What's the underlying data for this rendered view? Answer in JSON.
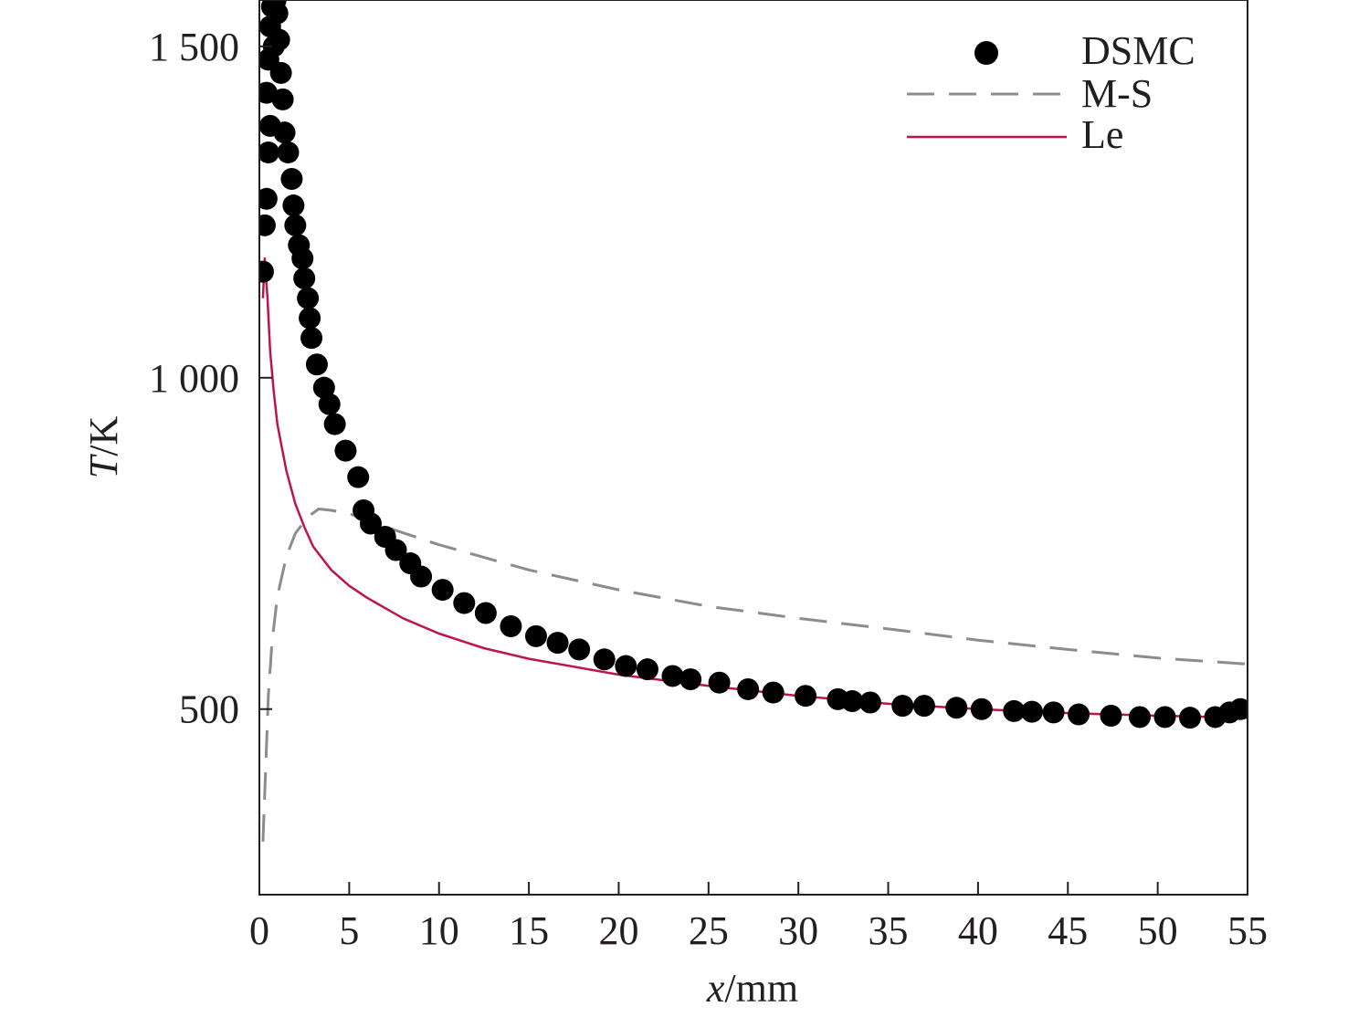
{
  "chart_data": {
    "type": "line",
    "xlabel": {
      "symbol": "x",
      "unit": "/mm"
    },
    "ylabel": {
      "symbol": "T",
      "unit": "/K"
    },
    "xlim": [
      0,
      55
    ],
    "ylim": [
      220,
      1570
    ],
    "xticks": [
      {
        "value": 0,
        "label": "0"
      },
      {
        "value": 5,
        "label": "5"
      },
      {
        "value": 10,
        "label": "10"
      },
      {
        "value": 15,
        "label": "15"
      },
      {
        "value": 20,
        "label": "20"
      },
      {
        "value": 25,
        "label": "25"
      },
      {
        "value": 30,
        "label": "30"
      },
      {
        "value": 35,
        "label": "35"
      },
      {
        "value": 40,
        "label": "40"
      },
      {
        "value": 45,
        "label": "45"
      },
      {
        "value": 50,
        "label": "50"
      },
      {
        "value": 55,
        "label": "55"
      }
    ],
    "yticks": [
      {
        "value": 500,
        "label": "500"
      },
      {
        "value": 1000,
        "label": "1 000"
      },
      {
        "value": 1500,
        "label": "1 500"
      }
    ],
    "grid": false,
    "legend_position": "top-right",
    "series": [
      {
        "name": "DSMC",
        "style": "markers",
        "color": "#000000",
        "points": [
          [
            0.2,
            1160
          ],
          [
            0.3,
            1230
          ],
          [
            0.4,
            1270
          ],
          [
            0.5,
            1340
          ],
          [
            0.6,
            1380
          ],
          [
            0.4,
            1430
          ],
          [
            0.5,
            1480
          ],
          [
            0.6,
            1530
          ],
          [
            0.7,
            1560
          ],
          [
            0.9,
            1570
          ],
          [
            0.8,
            1500
          ],
          [
            1.0,
            1550
          ],
          [
            1.1,
            1510
          ],
          [
            1.2,
            1460
          ],
          [
            1.3,
            1420
          ],
          [
            1.4,
            1370
          ],
          [
            1.6,
            1340
          ],
          [
            1.8,
            1300
          ],
          [
            1.9,
            1260
          ],
          [
            2.0,
            1230
          ],
          [
            2.2,
            1200
          ],
          [
            2.4,
            1180
          ],
          [
            2.5,
            1150
          ],
          [
            2.7,
            1120
          ],
          [
            2.8,
            1090
          ],
          [
            2.9,
            1060
          ],
          [
            3.2,
            1020
          ],
          [
            3.6,
            985
          ],
          [
            3.9,
            960
          ],
          [
            4.2,
            930
          ],
          [
            4.8,
            890
          ],
          [
            5.5,
            850
          ],
          [
            5.8,
            800
          ],
          [
            6.2,
            780
          ],
          [
            7.0,
            760
          ],
          [
            7.6,
            740
          ],
          [
            8.4,
            720
          ],
          [
            9.0,
            700
          ],
          [
            10.2,
            680
          ],
          [
            11.4,
            660
          ],
          [
            12.6,
            645
          ],
          [
            14.0,
            625
          ],
          [
            15.4,
            610
          ],
          [
            16.6,
            600
          ],
          [
            17.8,
            590
          ],
          [
            19.2,
            575
          ],
          [
            20.4,
            565
          ],
          [
            21.6,
            560
          ],
          [
            23.0,
            550
          ],
          [
            24.0,
            545
          ],
          [
            25.6,
            540
          ],
          [
            27.2,
            530
          ],
          [
            28.6,
            525
          ],
          [
            30.4,
            520
          ],
          [
            32.2,
            515
          ],
          [
            33.0,
            512
          ],
          [
            34.0,
            510
          ],
          [
            35.8,
            505
          ],
          [
            37.0,
            505
          ],
          [
            38.8,
            502
          ],
          [
            40.2,
            500
          ],
          [
            42.0,
            497
          ],
          [
            43.0,
            496
          ],
          [
            44.2,
            495
          ],
          [
            45.6,
            492
          ],
          [
            47.4,
            490
          ],
          [
            49.0,
            488
          ],
          [
            50.4,
            488
          ],
          [
            51.8,
            487
          ],
          [
            53.2,
            488
          ],
          [
            54.0,
            495
          ],
          [
            54.6,
            500
          ]
        ]
      },
      {
        "name": "M-S",
        "style": "dashed",
        "color": "#8c8c8c",
        "points": [
          [
            0.2,
            300
          ],
          [
            0.35,
            410
          ],
          [
            0.5,
            520
          ],
          [
            0.7,
            600
          ],
          [
            1.0,
            670
          ],
          [
            1.5,
            730
          ],
          [
            2.0,
            765
          ],
          [
            2.7,
            790
          ],
          [
            3.3,
            802
          ],
          [
            4.0,
            800
          ],
          [
            5.0,
            795
          ],
          [
            7.0,
            775
          ],
          [
            10.0,
            748
          ],
          [
            15.0,
            710
          ],
          [
            20.0,
            680
          ],
          [
            25.0,
            655
          ],
          [
            30.0,
            637
          ],
          [
            35.0,
            621
          ],
          [
            40.0,
            604
          ],
          [
            45.0,
            590
          ],
          [
            50.0,
            577
          ],
          [
            55.0,
            568
          ]
        ]
      },
      {
        "name": "Le",
        "style": "solid",
        "color": "#c0134b",
        "points": [
          [
            0.2,
            1120
          ],
          [
            0.3,
            1180
          ],
          [
            0.45,
            1120
          ],
          [
            0.6,
            1040
          ],
          [
            0.8,
            980
          ],
          [
            1.0,
            930
          ],
          [
            1.5,
            860
          ],
          [
            2.0,
            810
          ],
          [
            2.5,
            775
          ],
          [
            3.0,
            745
          ],
          [
            4.0,
            710
          ],
          [
            5.0,
            686
          ],
          [
            6.0,
            668
          ],
          [
            8.0,
            637
          ],
          [
            10.0,
            614
          ],
          [
            12.5,
            592
          ],
          [
            15.0,
            576
          ],
          [
            20.0,
            552
          ],
          [
            25.0,
            535
          ],
          [
            30.0,
            520
          ],
          [
            35.0,
            508
          ],
          [
            40.0,
            500
          ],
          [
            45.0,
            494
          ],
          [
            50.0,
            490
          ],
          [
            55.0,
            487
          ]
        ]
      }
    ]
  }
}
